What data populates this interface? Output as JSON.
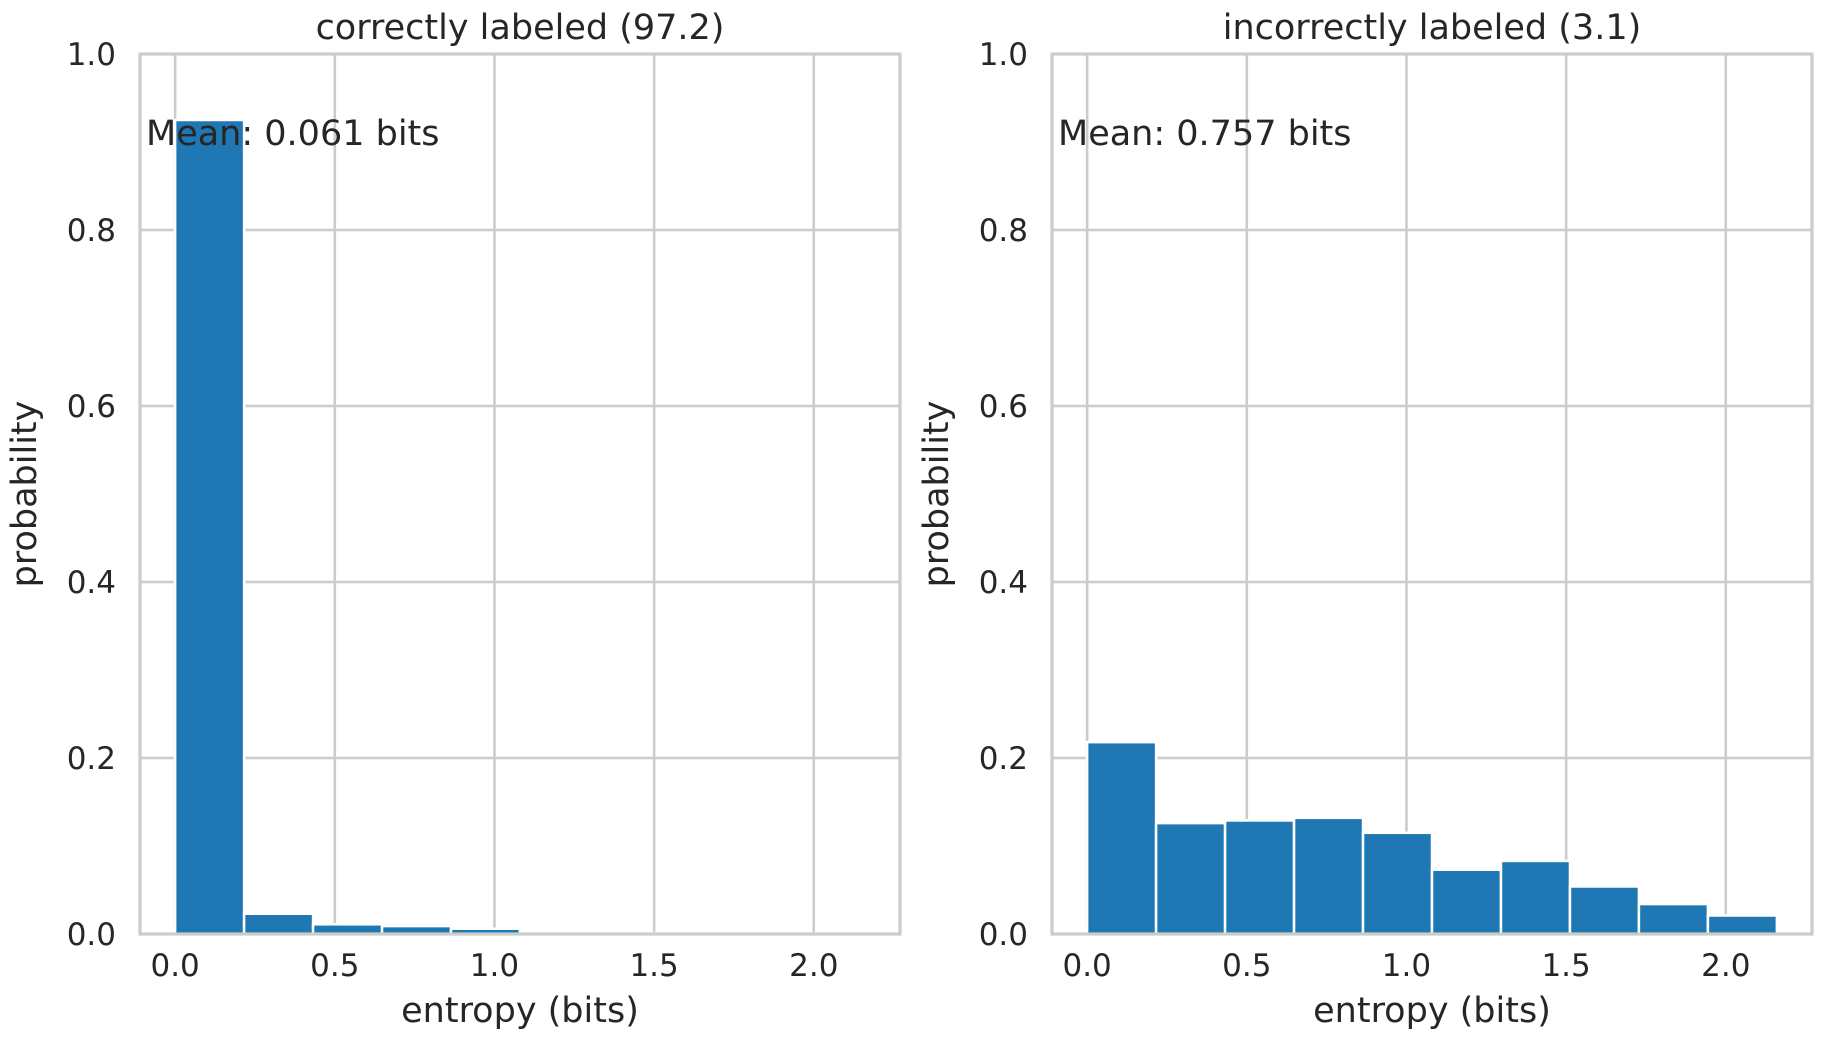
{
  "colors": {
    "bar": "#1f77b4",
    "grid": "#cccccc",
    "text": "#262626",
    "background": "#ffffff"
  },
  "chart_data": [
    {
      "type": "bar",
      "title": "correctly labeled (97.2)",
      "xlabel": "entropy (bits)",
      "ylabel": "probability",
      "xlim": [
        -0.11,
        2.27
      ],
      "ylim": [
        0,
        1.0
      ],
      "xticks": [
        0.0,
        0.5,
        1.0,
        1.5,
        2.0
      ],
      "xtick_labels": [
        "0.0",
        "0.5",
        "1.0",
        "1.5",
        "2.0"
      ],
      "yticks": [
        0.0,
        0.2,
        0.4,
        0.6,
        0.8,
        1.0
      ],
      "ytick_labels": [
        "0.0",
        "0.2",
        "0.4",
        "0.6",
        "0.8",
        "1.0"
      ],
      "grid": true,
      "annotation": "Mean: 0.061 bits",
      "bin_edges": [
        0.0,
        0.216,
        0.432,
        0.648,
        0.864,
        1.08,
        1.296,
        1.512,
        1.728,
        1.944,
        2.16
      ],
      "values": [
        0.925,
        0.023,
        0.011,
        0.009,
        0.006,
        0.003,
        0.001,
        0.0005,
        0.0005,
        0.0005
      ]
    },
    {
      "type": "bar",
      "title": "incorrectly labeled (3.1)",
      "xlabel": "entropy (bits)",
      "ylabel": "probability",
      "xlim": [
        -0.11,
        2.27
      ],
      "ylim": [
        0,
        1.0
      ],
      "xticks": [
        0.0,
        0.5,
        1.0,
        1.5,
        2.0
      ],
      "xtick_labels": [
        "0.0",
        "0.5",
        "1.0",
        "1.5",
        "2.0"
      ],
      "yticks": [
        0.0,
        0.2,
        0.4,
        0.6,
        0.8,
        1.0
      ],
      "ytick_labels": [
        "0.0",
        "0.2",
        "0.4",
        "0.6",
        "0.8",
        "1.0"
      ],
      "grid": true,
      "annotation": "Mean: 0.757 bits",
      "bin_edges": [
        0.0,
        0.216,
        0.432,
        0.648,
        0.864,
        1.08,
        1.296,
        1.512,
        1.728,
        1.944,
        2.16
      ],
      "values": [
        0.218,
        0.126,
        0.129,
        0.132,
        0.115,
        0.073,
        0.083,
        0.054,
        0.034,
        0.021
      ]
    }
  ]
}
